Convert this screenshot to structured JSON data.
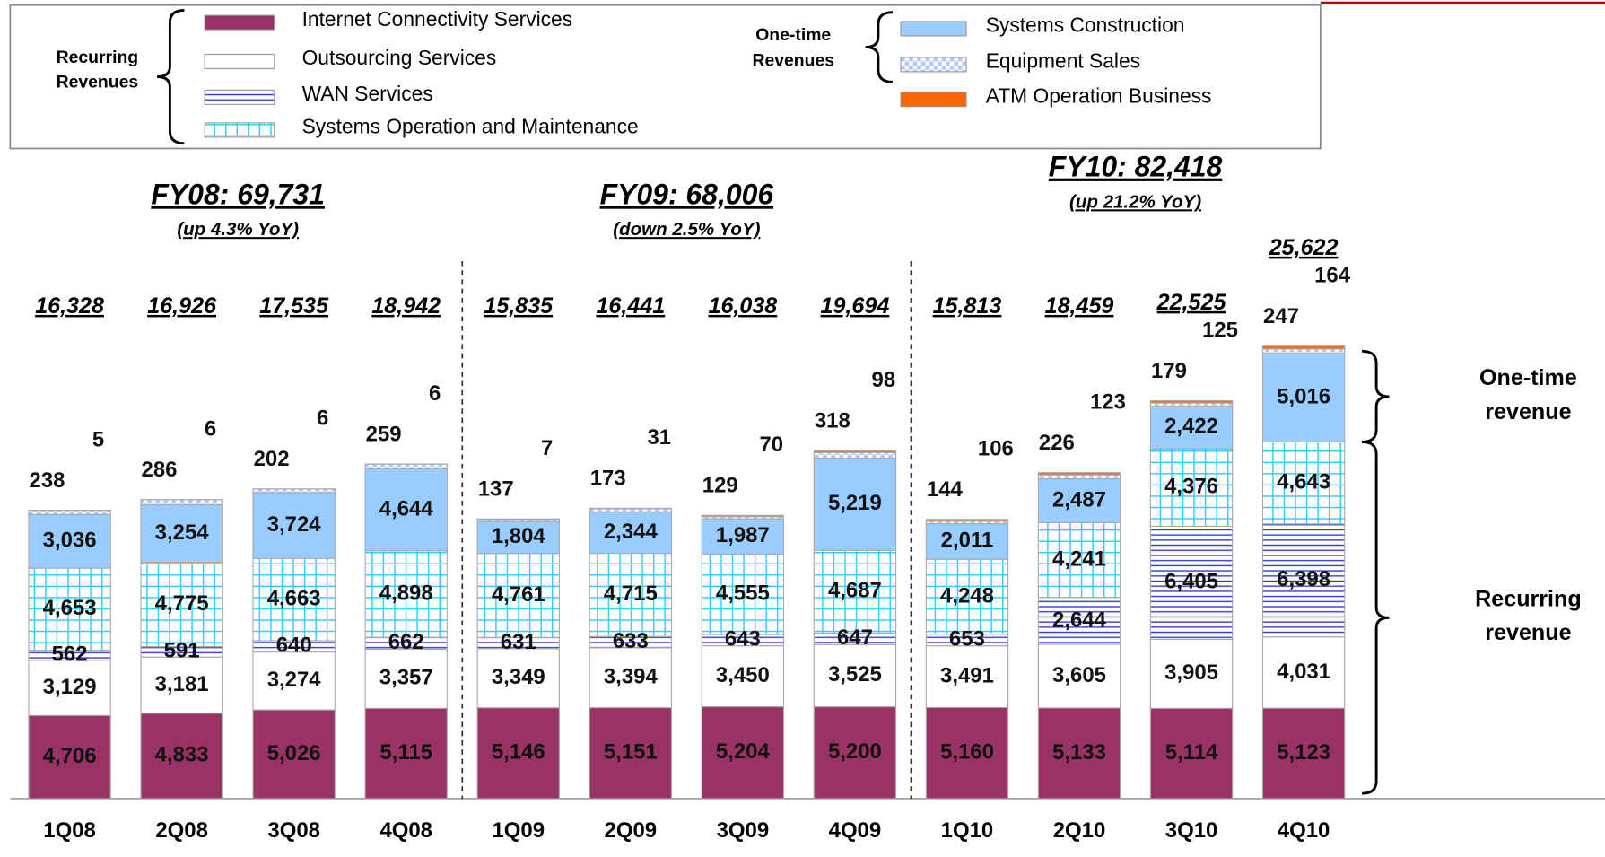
{
  "chart_data": {
    "type": "stacked-bar",
    "categories": [
      "1Q08",
      "2Q08",
      "3Q08",
      "4Q08",
      "1Q09",
      "2Q09",
      "3Q09",
      "4Q09",
      "1Q10",
      "2Q10",
      "3Q10",
      "4Q10"
    ],
    "series": [
      {
        "name": "Internet Connectivity Services",
        "color": "#993366",
        "pattern": "solid",
        "values": [
          4706,
          4833,
          5026,
          5115,
          5146,
          5151,
          5204,
          5200,
          5160,
          5133,
          5114,
          5123
        ],
        "value_labels": [
          "4,706",
          "4,833",
          "5,026",
          "5,115",
          "5,146",
          "5,151",
          "5,204",
          "5,200",
          "5,160",
          "5,133",
          "5,114",
          "5,123"
        ]
      },
      {
        "name": "Outsourcing Services",
        "color": "#ffffff",
        "pattern": "solid",
        "values": [
          3129,
          3181,
          3274,
          3357,
          3349,
          3394,
          3450,
          3525,
          3491,
          3605,
          3905,
          4031
        ],
        "value_labels": [
          "3,129",
          "3,181",
          "3,274",
          "3,357",
          "3,349",
          "3,394",
          "3,450",
          "3,525",
          "3,491",
          "3,605",
          "3,905",
          "4,031"
        ]
      },
      {
        "name": "WAN Services",
        "color": "#3333cc",
        "pattern": "hlines",
        "values": [
          562,
          591,
          640,
          662,
          631,
          633,
          643,
          647,
          653,
          2644,
          6405,
          6398
        ],
        "value_labels": [
          "562",
          "591",
          "640",
          "662",
          "631",
          "633",
          "643",
          "647",
          "653",
          "2,644",
          "6,405",
          "6,398"
        ]
      },
      {
        "name": "Systems Operation and Maintenance",
        "color": "#33ccff",
        "pattern": "grid",
        "values": [
          4653,
          4775,
          4663,
          4898,
          4761,
          4715,
          4555,
          4687,
          4248,
          4241,
          4376,
          4643
        ],
        "value_labels": [
          "4,653",
          "4,775",
          "4,663",
          "4,898",
          "4,761",
          "4,715",
          "4,555",
          "4,687",
          "4,248",
          "4,241",
          "4,376",
          "4,643"
        ]
      },
      {
        "name": "Systems Construction",
        "color": "#99ccff",
        "pattern": "solid",
        "values": [
          3036,
          3254,
          3724,
          4644,
          1804,
          2344,
          1987,
          5219,
          2011,
          2487,
          2422,
          5016
        ],
        "value_labels": [
          "3,036",
          "3,254",
          "3,724",
          "4,644",
          "1,804",
          "2,344",
          "1,987",
          "5,219",
          "2,011",
          "2,487",
          "2,422",
          "5,016"
        ]
      },
      {
        "name": "Equipment Sales",
        "color": "#b3c6ff",
        "pattern": "checker",
        "values": [
          238,
          286,
          202,
          259,
          137,
          173,
          129,
          318,
          144,
          226,
          179,
          247
        ]
      },
      {
        "name": "ATM Operation Business",
        "color": "#ff6600",
        "pattern": "solid",
        "values": [
          5,
          6,
          6,
          6,
          7,
          31,
          70,
          98,
          106,
          123,
          125,
          164
        ]
      }
    ],
    "totals": {
      "values": [
        16328,
        16926,
        17535,
        18942,
        15835,
        16441,
        16038,
        19694,
        15813,
        18459,
        22525,
        25622
      ],
      "value_labels": [
        "16,328",
        "16,926",
        "17,535",
        "18,942",
        "15,835",
        "16,441",
        "16,038",
        "19,694",
        "15,813",
        "18,459",
        "22,525",
        "25,622"
      ]
    },
    "groups": [
      {
        "title": "FY08: 69,731",
        "subtitle": "(up 4.3% YoY)"
      },
      {
        "title": "FY09: 68,006",
        "subtitle": "(down 2.5% YoY)"
      },
      {
        "title": "FY10: 82,418",
        "subtitle": "(up 21.2% YoY)"
      }
    ],
    "legend_groups": [
      [
        "Recurring",
        "Revenues"
      ],
      [
        "One-time",
        "Revenues"
      ]
    ],
    "brace_labels": [
      [
        "One-time",
        "revenue"
      ],
      [
        "Recurring",
        "revenue"
      ]
    ]
  }
}
